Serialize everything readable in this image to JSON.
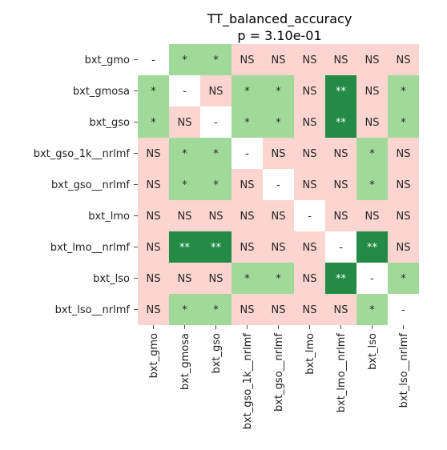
{
  "chart_data": {
    "type": "heatmap",
    "title": "TT_balanced_accuracy",
    "subtitle": "p = 3.10e-01",
    "rows": [
      "bxt_gmo",
      "bxt_gmosa",
      "bxt_gso",
      "bxt_gso_1k__nrlmf",
      "bxt_gso__nrlmf",
      "bxt_lmo",
      "bxt_lmo__nrlmf",
      "bxt_lso",
      "bxt_lso__nrlmf"
    ],
    "columns": [
      "bxt_gmo",
      "bxt_gmosa",
      "bxt_gso",
      "bxt_gso_1k__nrlmf",
      "bxt_gso__nrlmf",
      "bxt_lmo",
      "bxt_lmo__nrlmf",
      "bxt_lso",
      "bxt_lso__nrlmf"
    ],
    "cells": [
      [
        "-",
        "*",
        "*",
        "NS",
        "NS",
        "NS",
        "NS",
        "NS",
        "NS"
      ],
      [
        "*",
        "-",
        "NS",
        "*",
        "*",
        "NS",
        "**",
        "NS",
        "*"
      ],
      [
        "*",
        "NS",
        "-",
        "*",
        "*",
        "NS",
        "**",
        "NS",
        "*"
      ],
      [
        "NS",
        "*",
        "*",
        "-",
        "NS",
        "NS",
        "NS",
        "*",
        "NS"
      ],
      [
        "NS",
        "*",
        "*",
        "NS",
        "-",
        "NS",
        "NS",
        "*",
        "NS"
      ],
      [
        "NS",
        "NS",
        "NS",
        "NS",
        "NS",
        "-",
        "NS",
        "NS",
        "NS"
      ],
      [
        "NS",
        "**",
        "**",
        "NS",
        "NS",
        "NS",
        "-",
        "**",
        "NS"
      ],
      [
        "NS",
        "NS",
        "NS",
        "*",
        "*",
        "NS",
        "**",
        "-",
        "*"
      ],
      [
        "NS",
        "*",
        "*",
        "NS",
        "NS",
        "NS",
        "NS",
        "*",
        "-"
      ]
    ],
    "colors": {
      "NS": "#fcd5d0",
      "*": "#a1d99b",
      "**": "#238b45",
      "-": "#ffffff"
    },
    "text_colors": {
      "NS": "#262626",
      "*": "#262626",
      "**": "#ffffff",
      "-": "#262626"
    },
    "grid": false,
    "legend": "none"
  }
}
